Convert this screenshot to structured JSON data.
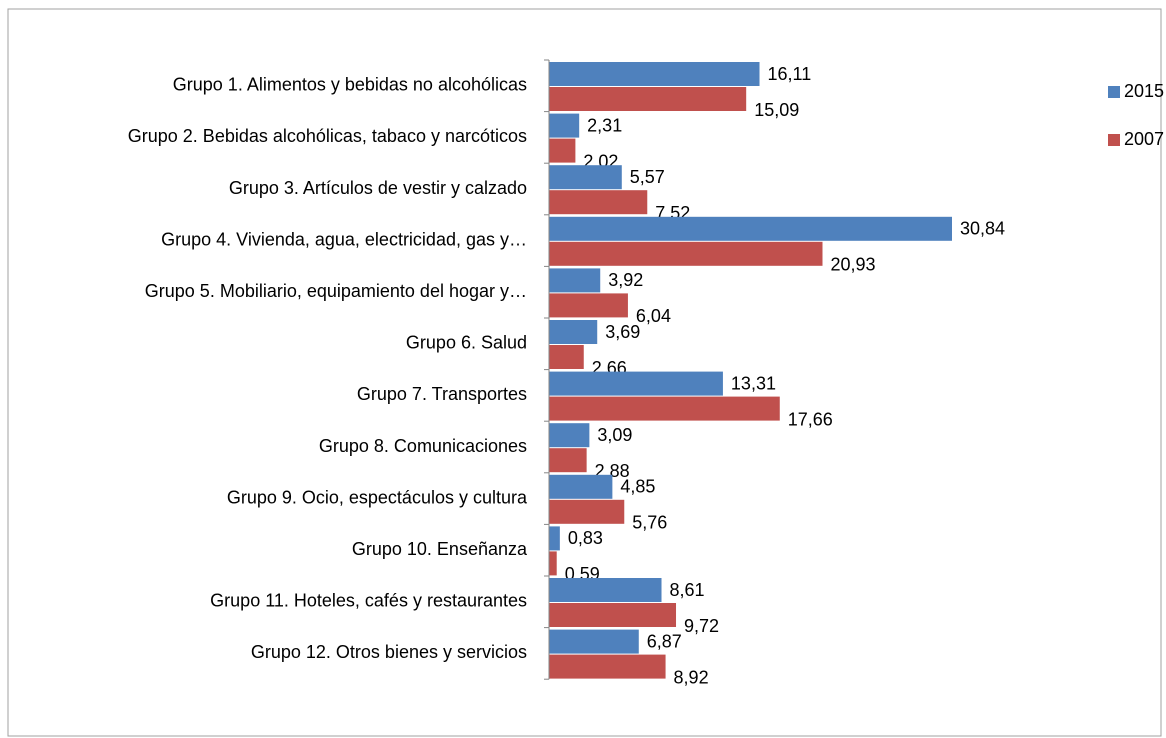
{
  "chart_data": {
    "type": "bar",
    "orientation": "horizontal",
    "legend": "right",
    "categories": [
      "Grupo 1. Alimentos y bebidas no alcohólicas",
      "Grupo 2. Bebidas alcohólicas, tabaco y narcóticos",
      "Grupo 3. Artículos de vestir y calzado",
      "Grupo 4. Vivienda, agua, electricidad, gas y…",
      "Grupo 5. Mobiliario, equipamiento del hogar y…",
      "Grupo 6. Salud",
      "Grupo 7. Transportes",
      "Grupo 8. Comunicaciones",
      "Grupo 9. Ocio, espectáculos y cultura",
      "Grupo 10. Enseñanza",
      "Grupo 11. Hoteles, cafés y restaurantes",
      "Grupo 12. Otros bienes y servicios"
    ],
    "series": [
      {
        "name": "2015",
        "color": "#4f81bd",
        "values": [
          16.11,
          2.31,
          5.57,
          30.84,
          3.92,
          3.69,
          13.31,
          3.09,
          4.85,
          0.83,
          8.61,
          6.87
        ],
        "value_labels": [
          "16,11",
          "2,31",
          "5,57",
          "30,84",
          "3,92",
          "3,69",
          "13,31",
          "3,09",
          "4,85",
          "0,83",
          "8,61",
          "6,87"
        ]
      },
      {
        "name": "2007",
        "color": "#c0504d",
        "values": [
          15.09,
          2.02,
          7.52,
          20.93,
          6.04,
          2.66,
          17.66,
          2.88,
          5.76,
          0.59,
          9.72,
          8.92
        ],
        "value_labels": [
          "15,09",
          "2,02",
          "7,52",
          "20,93",
          "6,04",
          "2,66",
          "17,66",
          "2,88",
          "5,76",
          "0,59",
          "9,72",
          "8,92"
        ]
      }
    ]
  }
}
